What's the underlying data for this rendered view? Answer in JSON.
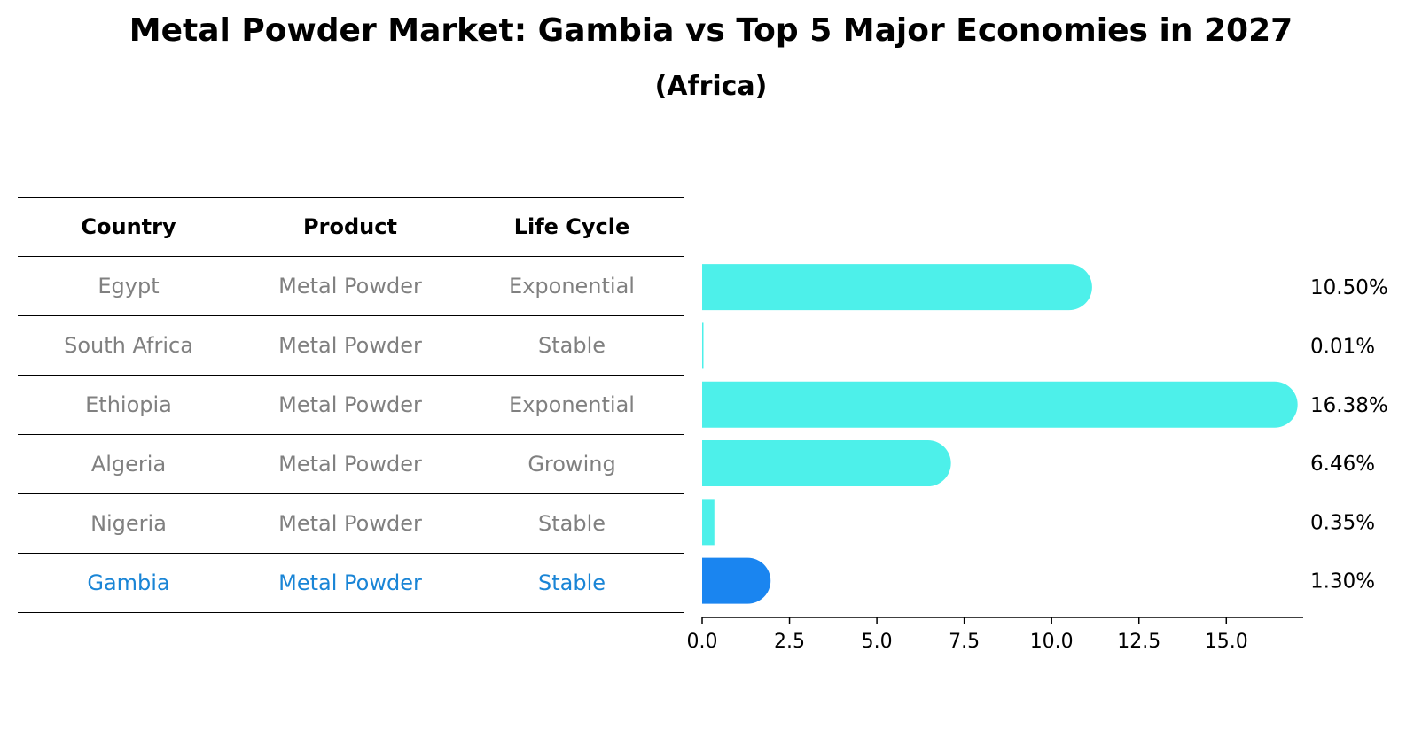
{
  "title": "Metal Powder Market: Gambia vs Top 5 Major Economies in 2027",
  "subtitle": "(Africa)",
  "table": {
    "headers": [
      "Country",
      "Product",
      "Life Cycle"
    ],
    "rows": [
      [
        "Egypt",
        "Metal Powder",
        "Exponential"
      ],
      [
        "South Africa",
        "Metal Powder",
        "Stable"
      ],
      [
        "Ethiopia",
        "Metal Powder",
        "Exponential"
      ],
      [
        "Algeria",
        "Metal Powder",
        "Growing"
      ],
      [
        "Nigeria",
        "Metal Powder",
        "Stable"
      ],
      [
        "Gambia",
        "Metal Powder",
        "Stable"
      ]
    ]
  },
  "chart_data": {
    "type": "bar",
    "orientation": "horizontal",
    "categories": [
      "Egypt",
      "South Africa",
      "Ethiopia",
      "Algeria",
      "Nigeria",
      "Gambia"
    ],
    "values": [
      10.5,
      0.01,
      16.38,
      6.46,
      0.35,
      1.3
    ],
    "value_labels": [
      "10.50%",
      "0.01%",
      "16.38%",
      "6.46%",
      "0.35%",
      "1.30%"
    ],
    "highlight": "Gambia",
    "xlim": [
      0,
      17.2
    ],
    "xticks": [
      0.0,
      2.5,
      5.0,
      7.5,
      10.0,
      12.5,
      15.0
    ],
    "xtick_labels": [
      "0.0",
      "2.5",
      "5.0",
      "7.5",
      "10.0",
      "12.5",
      "15.0"
    ],
    "xlabel": "",
    "ylabel": "",
    "grid": false,
    "colors": {
      "bar": "#4df0ea",
      "highlight": "#1a85f0"
    }
  }
}
